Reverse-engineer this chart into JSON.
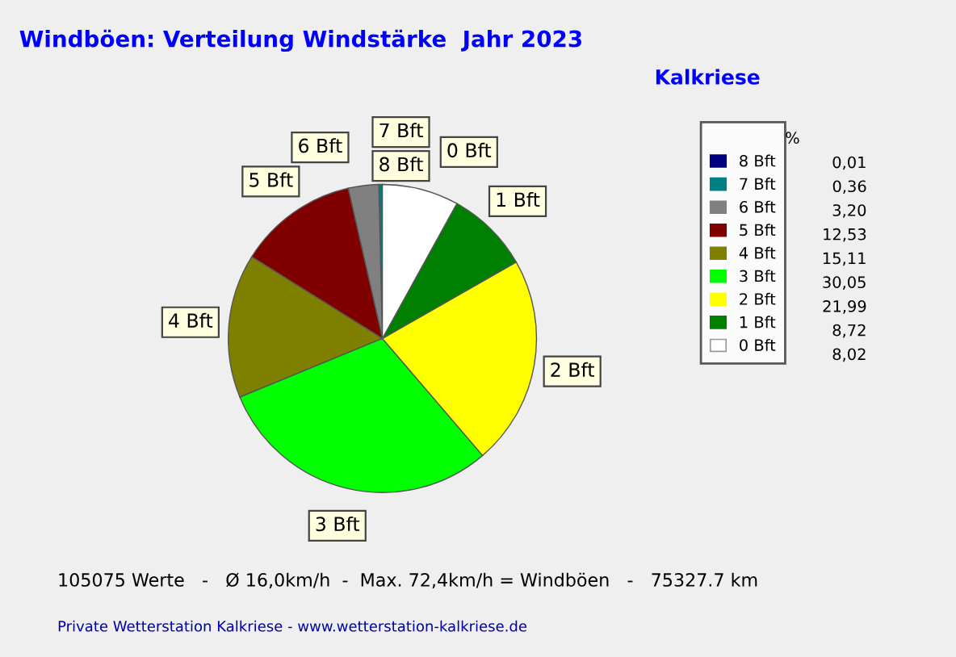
{
  "chart_data": {
    "type": "pie",
    "title": "Windböen: Verteilung Windstärke  Jahr 2023",
    "subtitle": "Kalkriese",
    "legend_title": "%",
    "legend": "right",
    "categories": [
      "8 Bft",
      "7 Bft",
      "6 Bft",
      "5 Bft",
      "4 Bft",
      "3 Bft",
      "2 Bft",
      "1 Bft",
      "0 Bft"
    ],
    "values": [
      0.01,
      0.36,
      3.2,
      12.53,
      15.11,
      30.05,
      21.99,
      8.72,
      8.02
    ],
    "value_labels": [
      "0,01",
      "0,36",
      "3,20",
      "12,53",
      "15,11",
      "30,05",
      "21,99",
      "8,72",
      "8,02"
    ],
    "colors": [
      "#000080",
      "#008080",
      "#808080",
      "#800000",
      "#808000",
      "#00ff00",
      "#ffff00",
      "#008000",
      "#ffffff"
    ],
    "annotations": [
      "105075 Werte   -   Ø 16,0km/h  -  Max. 72,4km/h = Windböen   -   75327.7 km",
      "Private Wetterstation Kalkriese - www.wetterstation-kalkriese.de"
    ]
  }
}
